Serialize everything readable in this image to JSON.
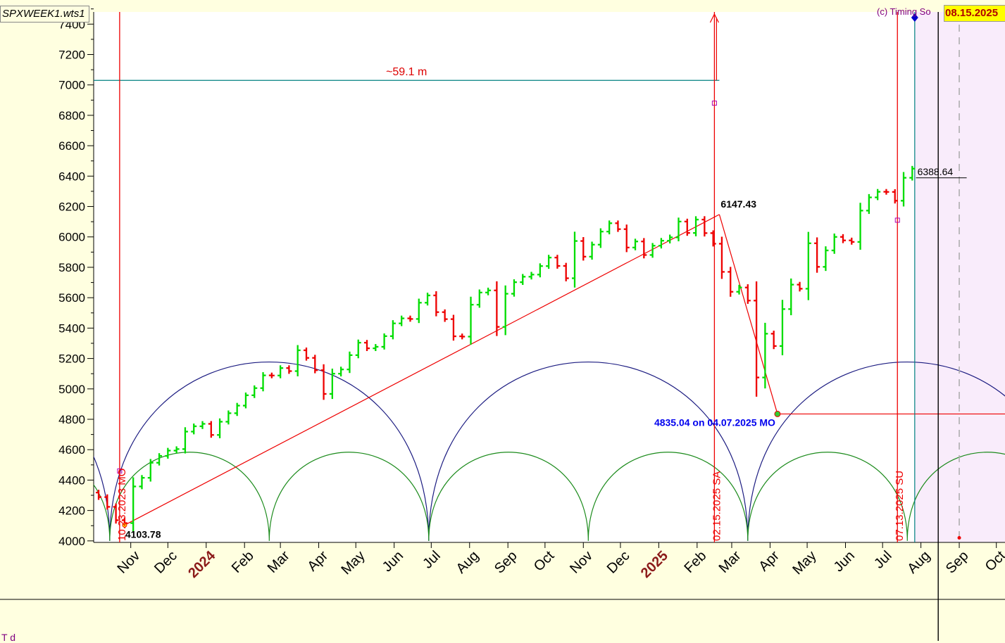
{
  "window": {
    "file_label": "SPXWEEK1.wts1",
    "copyright": "(c) Timing So",
    "current_date": "08.15.2025",
    "bottom_text": "T  d"
  },
  "colors": {
    "background": "#ffffe0",
    "plot_background": "#ffffff",
    "future_shade": "#f9ecfb",
    "up_bar": "#00dd00",
    "down_bar": "#ee0000",
    "marker_line": "#ee0000",
    "teal_line": "#008080",
    "large_cycle": "#1a1a80",
    "small_cycle": "#1a8a1a",
    "low_label": "#0000ee"
  },
  "chart_data": {
    "type": "bar",
    "subtype": "ohlc-weekly",
    "y_ticks": [
      4000,
      4200,
      4400,
      4600,
      4800,
      5000,
      5200,
      5400,
      5600,
      5800,
      6000,
      6200,
      6400,
      6600,
      6800,
      7000,
      7200,
      7400
    ],
    "ylim": [
      3990,
      7480
    ],
    "x_range": [
      "2023-10-02",
      "2025-10-08"
    ],
    "month_labels": [
      {
        "date": "2023-11-01",
        "label": "Nov"
      },
      {
        "date": "2023-12-01",
        "label": "Dec"
      },
      {
        "date": "2024-01-01",
        "label": "2024",
        "year": true
      },
      {
        "date": "2024-02-01",
        "label": "Feb"
      },
      {
        "date": "2024-03-01",
        "label": "Mar"
      },
      {
        "date": "2024-04-01",
        "label": "Apr"
      },
      {
        "date": "2024-05-01",
        "label": "May"
      },
      {
        "date": "2024-06-01",
        "label": "Jun"
      },
      {
        "date": "2024-07-01",
        "label": "Jul"
      },
      {
        "date": "2024-08-01",
        "label": "Aug"
      },
      {
        "date": "2024-09-01",
        "label": "Sep"
      },
      {
        "date": "2024-10-01",
        "label": "Oct"
      },
      {
        "date": "2024-11-01",
        "label": "Nov"
      },
      {
        "date": "2024-12-01",
        "label": "Dec"
      },
      {
        "date": "2025-01-01",
        "label": "2025",
        "year": true
      },
      {
        "date": "2025-02-01",
        "label": "Feb"
      },
      {
        "date": "2025-03-01",
        "label": "Mar"
      },
      {
        "date": "2025-04-01",
        "label": "Apr"
      },
      {
        "date": "2025-05-01",
        "label": "May"
      },
      {
        "date": "2025-06-01",
        "label": "Jun"
      },
      {
        "date": "2025-07-01",
        "label": "Jul"
      },
      {
        "date": "2025-08-01",
        "label": "Aug"
      },
      {
        "date": "2025-09-01",
        "label": "Sep"
      },
      {
        "date": "2025-10-01",
        "label": "Oct"
      }
    ],
    "closes": [
      4288,
      4224,
      4136,
      4117,
      4358,
      4415,
      4514,
      4559,
      4594,
      4604,
      4719,
      4754,
      4770,
      4697,
      4784,
      4840,
      4890,
      4958,
      5005,
      5089,
      5088,
      5137,
      5117,
      5254,
      5204,
      5123,
      4967,
      5100,
      5128,
      5222,
      5304,
      5267,
      5277,
      5347,
      5431,
      5464,
      5460,
      5567,
      5615,
      5505,
      5459,
      5346,
      5344,
      5554,
      5634,
      5648,
      5408,
      5626,
      5702,
      5738,
      5752,
      5808,
      5864,
      5809,
      5728,
      5973,
      5870,
      5949,
      6035,
      6090,
      6051,
      5930,
      5970,
      5881,
      5942,
      5975,
      5997,
      6101,
      6026,
      6114,
      6025,
      5955,
      5770,
      5639,
      5667,
      5581,
      5075,
      5363,
      5282,
      5525,
      5686,
      5659,
      5958,
      5803,
      5911,
      6000,
      5977,
      5967,
      6173,
      6260,
      6297,
      6296,
      6238,
      6389,
      6449
    ],
    "dates": [
      "2023-10-06",
      "2023-10-13",
      "2023-10-20",
      "2023-10-27",
      "2023-11-03",
      "2023-11-10",
      "2023-11-17",
      "2023-11-24",
      "2023-12-01",
      "2023-12-08",
      "2023-12-15",
      "2023-12-22",
      "2023-12-29",
      "2024-01-05",
      "2024-01-12",
      "2024-01-19",
      "2024-01-26",
      "2024-02-02",
      "2024-02-09",
      "2024-02-16",
      "2024-02-23",
      "2024-03-01",
      "2024-03-08",
      "2024-03-15",
      "2024-03-22",
      "2024-03-29",
      "2024-04-05",
      "2024-04-12",
      "2024-04-19",
      "2024-04-26",
      "2024-05-03",
      "2024-05-10",
      "2024-05-17",
      "2024-05-24",
      "2024-05-31",
      "2024-06-07",
      "2024-06-14",
      "2024-06-21",
      "2024-06-28",
      "2024-07-05",
      "2024-07-12",
      "2024-07-19",
      "2024-07-26",
      "2024-08-02",
      "2024-08-09",
      "2024-08-16",
      "2024-08-23",
      "2024-08-30",
      "2024-09-06",
      "2024-09-13",
      "2024-09-20",
      "2024-09-27",
      "2024-10-04",
      "2024-10-11",
      "2024-10-18",
      "2024-10-25",
      "2024-11-01",
      "2024-11-08",
      "2024-11-15",
      "2024-11-22",
      "2024-11-29",
      "2024-12-06",
      "2024-12-13",
      "2024-12-20",
      "2024-12-27",
      "2025-01-03",
      "2025-01-10",
      "2025-01-17",
      "2025-01-24",
      "2025-01-31",
      "2025-02-07",
      "2025-02-14",
      "2025-02-21",
      "2025-02-28",
      "2025-03-07",
      "2025-03-14",
      "2025-03-21",
      "2025-03-28",
      "2025-04-04",
      "2025-04-11",
      "2025-04-18",
      "2025-04-25",
      "2025-05-02",
      "2025-05-09",
      "2025-05-16",
      "2025-05-23",
      "2025-05-30",
      "2025-06-06",
      "2025-06-13",
      "2025-06-20",
      "2025-06-27",
      "2025-07-04",
      "2025-07-11",
      "2025-07-18",
      "2025-07-25"
    ],
    "vertical_markers": [
      {
        "date": "2023-10-23",
        "label": "10.23.2023 MO"
      },
      {
        "date": "2025-02-15",
        "label": "02.15.2025 SA"
      },
      {
        "date": "2025-07-13",
        "label": "07.13.2025 SU"
      }
    ],
    "current_date_line": "2025-08-15",
    "today_line": "2025-08-04",
    "dashed_line": "2025-09-01",
    "future_shade_start": "2025-07-27",
    "price_labels": [
      {
        "date": "2023-10-27",
        "value": 4103.78,
        "text": "4103.78"
      },
      {
        "date": "2025-02-19",
        "value": 6147.43,
        "text": "6147.43"
      },
      {
        "date": "2025-07-28",
        "value": 6388.64,
        "text": "6388.64"
      }
    ],
    "low_annotation": {
      "date": "2025-04-07",
      "value": 4835.04,
      "text": "4835.04 on 04.07.2025 MO"
    },
    "trend_line": {
      "from": {
        "date": "2023-10-27",
        "value": 4103.78
      },
      "to": {
        "date": "2025-02-19",
        "value": 6147.43
      }
    },
    "projection_line": {
      "y": 7030,
      "from": "2023-10-02",
      "to": "2025-02-19",
      "label": "~59.1 m"
    },
    "large_cycle": {
      "base": 4000,
      "peak": 5180,
      "period_days": 258,
      "anchor": "2023-10-15"
    },
    "small_cycle": {
      "base": 4000,
      "peak": 4585,
      "period_days": 129,
      "anchor": "2023-10-15"
    }
  }
}
